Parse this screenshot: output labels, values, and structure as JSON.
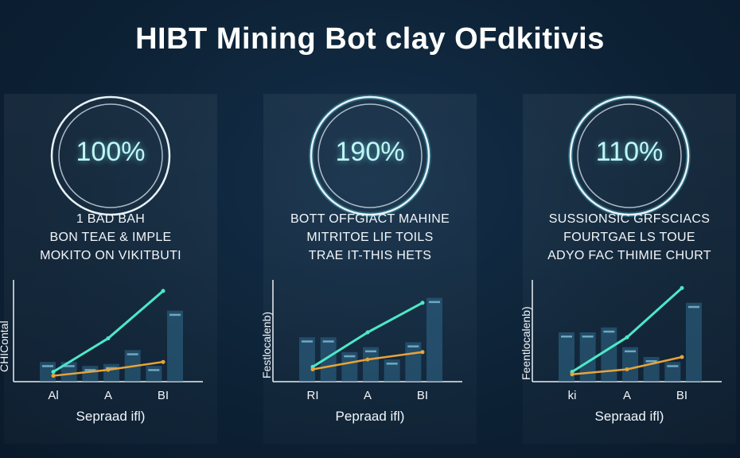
{
  "title": "HIBT Mining Bot clay OFdkitivis",
  "colors": {
    "ring": "#e8f2f8",
    "ring_glow": "#43c6d6",
    "line_teal": "#4de8c8",
    "line_orange": "#e8a43a",
    "bar": "#2f6a8c"
  },
  "panels": [
    {
      "percent": "100%",
      "description": [
        "1 BAD BAH",
        "BON TEAE & IMPLE",
        "MOKITO ON VIKITBUTI"
      ],
      "ylabel": "CHIContal",
      "xlabel": "Sepraad ifl)",
      "ring_glow": false
    },
    {
      "percent": "190%",
      "description": [
        "BOTT OFFGIACT MAHINE",
        "MITRITOE LIF TOILS",
        "TRAE IT-THIS HETS"
      ],
      "ylabel": "Festlocalenb)",
      "xlabel": "Pepraad ifl)",
      "ring_glow": true
    },
    {
      "percent": "110%",
      "description": [
        "SUSSIONSIC GRFSCIACS",
        "FOURTGAE LS TOUE",
        "ADYO FAC THIMIE CHURT"
      ],
      "ylabel": "Feentlocalenb)",
      "xlabel": "Sepraad ifl)",
      "ring_glow": true
    }
  ],
  "chart_data": [
    {
      "type": "line",
      "categories": [
        "Al",
        "A",
        "BI"
      ],
      "series": [
        {
          "values": [
            0.5,
            2.2,
            4.6
          ]
        },
        {
          "values": [
            0.3,
            0.6,
            1.0
          ]
        }
      ],
      "bars": [
        1.0,
        1.0,
        0.8,
        0.9,
        1.6,
        0.8,
        3.6
      ],
      "ylim": [
        0,
        5
      ]
    },
    {
      "type": "line",
      "categories": [
        "RI",
        "A",
        "BI"
      ],
      "series": [
        {
          "values": [
            0.6,
            2.0,
            3.2
          ]
        },
        {
          "values": [
            0.5,
            0.9,
            1.2
          ]
        }
      ],
      "bars": [
        1.8,
        1.8,
        1.2,
        1.4,
        0.9,
        1.6,
        3.4
      ],
      "ylim": [
        0,
        4
      ]
    },
    {
      "type": "line",
      "categories": [
        "ki",
        "A",
        "BI"
      ],
      "series": [
        {
          "values": [
            0.4,
            1.8,
            3.8
          ]
        },
        {
          "values": [
            0.3,
            0.5,
            1.0
          ]
        }
      ],
      "bars": [
        2.0,
        2.0,
        2.2,
        1.4,
        1.0,
        0.8,
        3.2
      ],
      "ylim": [
        0,
        4
      ]
    }
  ]
}
